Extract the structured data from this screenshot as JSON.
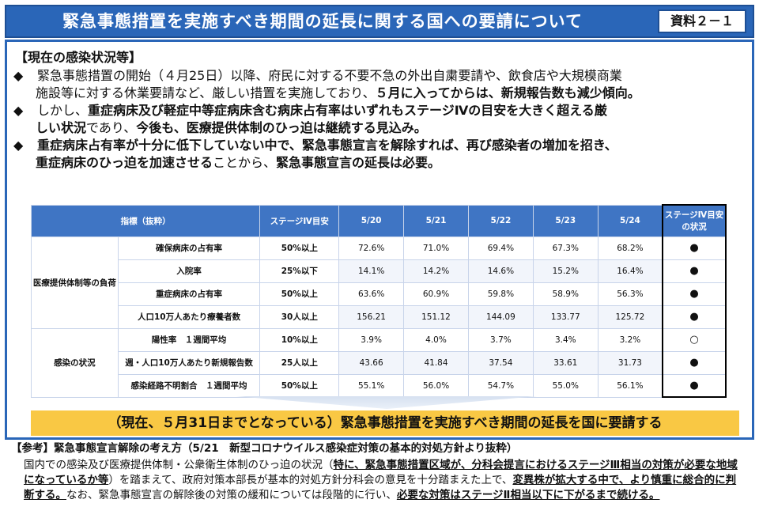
{
  "header": {
    "title": "緊急事態措置を実施すべき期間の延長に関する国への要請について",
    "doc_id": "資料２－１",
    "bg_color": "#2a66b8"
  },
  "situation": {
    "heading": "【現在の感染状況等】",
    "bullet_mark": "◆",
    "b1": {
      "plain1": "緊急事態措置の開始（４月25日）以降、府民に対する不要不急の外出自粛要請や、飲食店や大規模商業",
      "plain2": "施設等に対する休業要請など、厳しい措置を実施しており、",
      "bold1": "５月に入ってからは、新規報告数も減少傾向。"
    },
    "b2": {
      "plain1": "しかし、",
      "bold1": "重症病床及び軽症中等症病床含む病床占有率はいずれもステージⅣの目安を大きく超える厳",
      "bold2": "しい状況",
      "plain2": "であり、",
      "bold3": "今後も、医療提供体制のひっ迫は継続する見込み。"
    },
    "b3": {
      "bold1": "重症病床占有率が十分に低下していない中で、緊急事態宣言を解除すれば、再び感染者の増加を招き、",
      "bold2": "重症病床のひっ迫を加速させる",
      "plain1": "ことから、",
      "bold3": "緊急事態宣言の延長は必要。"
    }
  },
  "table": {
    "headers": {
      "indicator": "指標（抜粋）",
      "target": "ステージⅣ目安",
      "d1": "5/20",
      "d2": "5/21",
      "d3": "5/22",
      "d4": "5/23",
      "d5": "5/24",
      "status": "ステージⅣ目安の状況"
    },
    "groups": {
      "medical": "医療提供体制等の負荷",
      "infection": "感染の状況"
    },
    "rows": [
      {
        "name": "確保病床の占有率",
        "target": "50%以上",
        "v": [
          "72.6%",
          "71.0%",
          "69.4%",
          "67.3%",
          "68.2%"
        ],
        "status": "●"
      },
      {
        "name": "入院率",
        "target": "25%以下",
        "v": [
          "14.1%",
          "14.2%",
          "14.6%",
          "15.2%",
          "16.4%"
        ],
        "status": "●"
      },
      {
        "name": "重症病床の占有率",
        "target": "50%以上",
        "v": [
          "63.6%",
          "60.9%",
          "59.8%",
          "58.9%",
          "56.3%"
        ],
        "status": "●"
      },
      {
        "name": "人口10万人あたり療養者数",
        "target": "30人以上",
        "v": [
          "156.21",
          "151.12",
          "144.09",
          "133.77",
          "125.72"
        ],
        "status": "●"
      },
      {
        "name": "陽性率　１週間平均",
        "target": "10%以上",
        "v": [
          "3.9%",
          "4.0%",
          "3.7%",
          "3.4%",
          "3.2%"
        ],
        "status": "○"
      },
      {
        "name": "週・人口10万人あたり新規報告数",
        "target": "25人以上",
        "v": [
          "43.66",
          "41.84",
          "37.54",
          "33.61",
          "31.73"
        ],
        "status": "●"
      },
      {
        "name": "感染経路不明割合　１週間平均",
        "target": "50%以上",
        "v": [
          "55.1%",
          "56.0%",
          "54.7%",
          "55.0%",
          "56.1%"
        ],
        "status": "●"
      }
    ]
  },
  "banner": {
    "text": "（現在、５月31日までとなっている）緊急事態措置を実施すべき期間の延長を国に要請する",
    "color": "#f9c844"
  },
  "reference": {
    "title": "【参考】緊急事態宣言解除の考え方（5/21　新型コロナウイルス感染症対策の基本的対処方針より抜粋）",
    "p1": "国内での感染及び医療提供体制・公衆衛生体制のひっ迫の状況（",
    "u1": "特に、緊急事態措置区域が、分科会提言におけるステージⅢ相当の対策が必要な地域になっているか等",
    "p2": "）を踏まえて、政府対策本部長が基本的対処方針分科会の意見を十分踏まえた上で、",
    "u2": "変異株が拡大する中で、より慎重に総合的に判断する。",
    "p3": "なお、緊急事態宣言の解除後の対策の緩和については段階的に行い、",
    "u3": "必要な対策はステージⅡ相当以下に下がるまで続ける。"
  }
}
